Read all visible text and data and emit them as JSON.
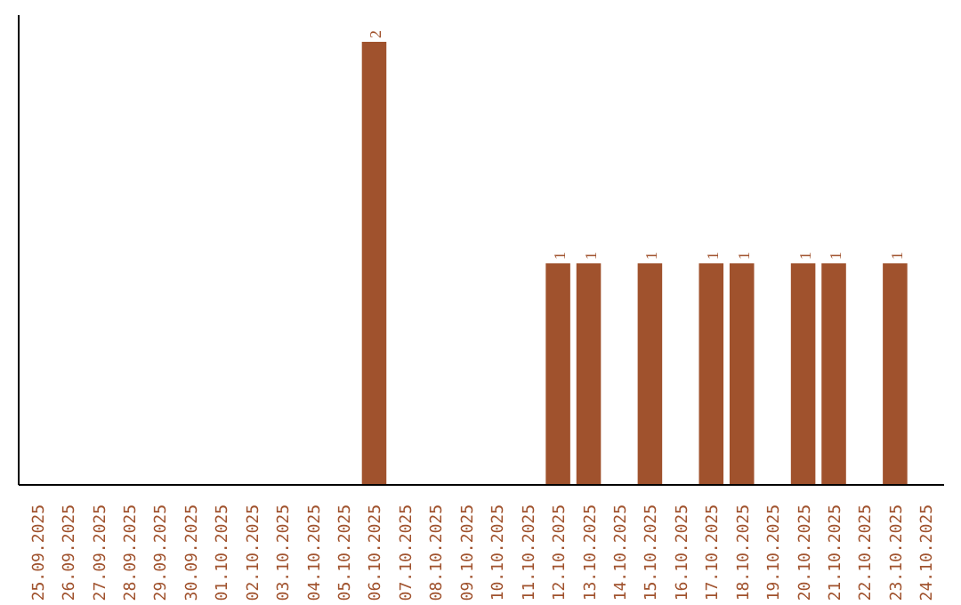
{
  "chart_data": {
    "type": "bar",
    "categories": [
      "25.09.2025",
      "26.09.2025",
      "27.09.2025",
      "28.09.2025",
      "29.09.2025",
      "30.09.2025",
      "01.10.2025",
      "02.10.2025",
      "03.10.2025",
      "04.10.2025",
      "05.10.2025",
      "06.10.2025",
      "07.10.2025",
      "08.10.2025",
      "09.10.2025",
      "10.10.2025",
      "11.10.2025",
      "12.10.2025",
      "13.10.2025",
      "14.10.2025",
      "15.10.2025",
      "16.10.2025",
      "17.10.2025",
      "18.10.2025",
      "19.10.2025",
      "20.10.2025",
      "21.10.2025",
      "22.10.2025",
      "23.10.2025",
      "24.10.2025"
    ],
    "values": [
      0,
      0,
      0,
      0,
      0,
      0,
      0,
      0,
      0,
      0,
      0,
      2,
      0,
      0,
      0,
      0,
      0,
      1,
      1,
      0,
      1,
      0,
      1,
      1,
      0,
      1,
      1,
      0,
      1,
      0
    ],
    "value_labels": [
      null,
      null,
      null,
      null,
      null,
      null,
      null,
      null,
      null,
      null,
      null,
      "2",
      null,
      null,
      null,
      null,
      null,
      "1",
      "1",
      null,
      "1",
      null,
      "1",
      "1",
      null,
      "1",
      "1",
      null,
      "1",
      null
    ],
    "color": "#a0522d"
  }
}
